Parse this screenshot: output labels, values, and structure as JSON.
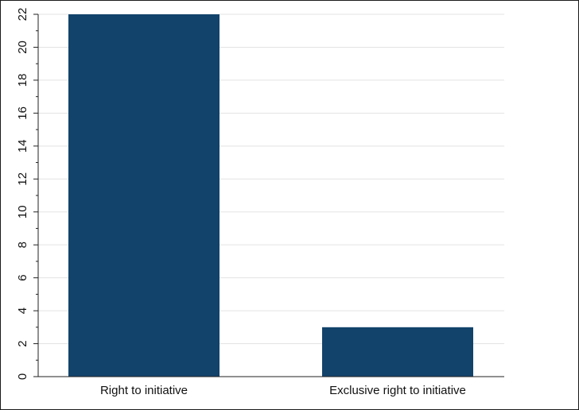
{
  "chart_data": {
    "type": "bar",
    "categories": [
      "Right to initiative",
      "Exclusive right to initiative"
    ],
    "values": [
      22,
      3
    ],
    "title": "",
    "xlabel": "",
    "ylabel": "",
    "ylim": [
      0,
      22
    ],
    "yticks": [
      0,
      2,
      4,
      6,
      8,
      10,
      12,
      14,
      16,
      18,
      20,
      22
    ],
    "grid": true,
    "legend": "none"
  },
  "colors": {
    "bar": "#12436b",
    "grid": "#e3e3e3",
    "axis": "#222222",
    "frame": "#1a1a1a"
  }
}
